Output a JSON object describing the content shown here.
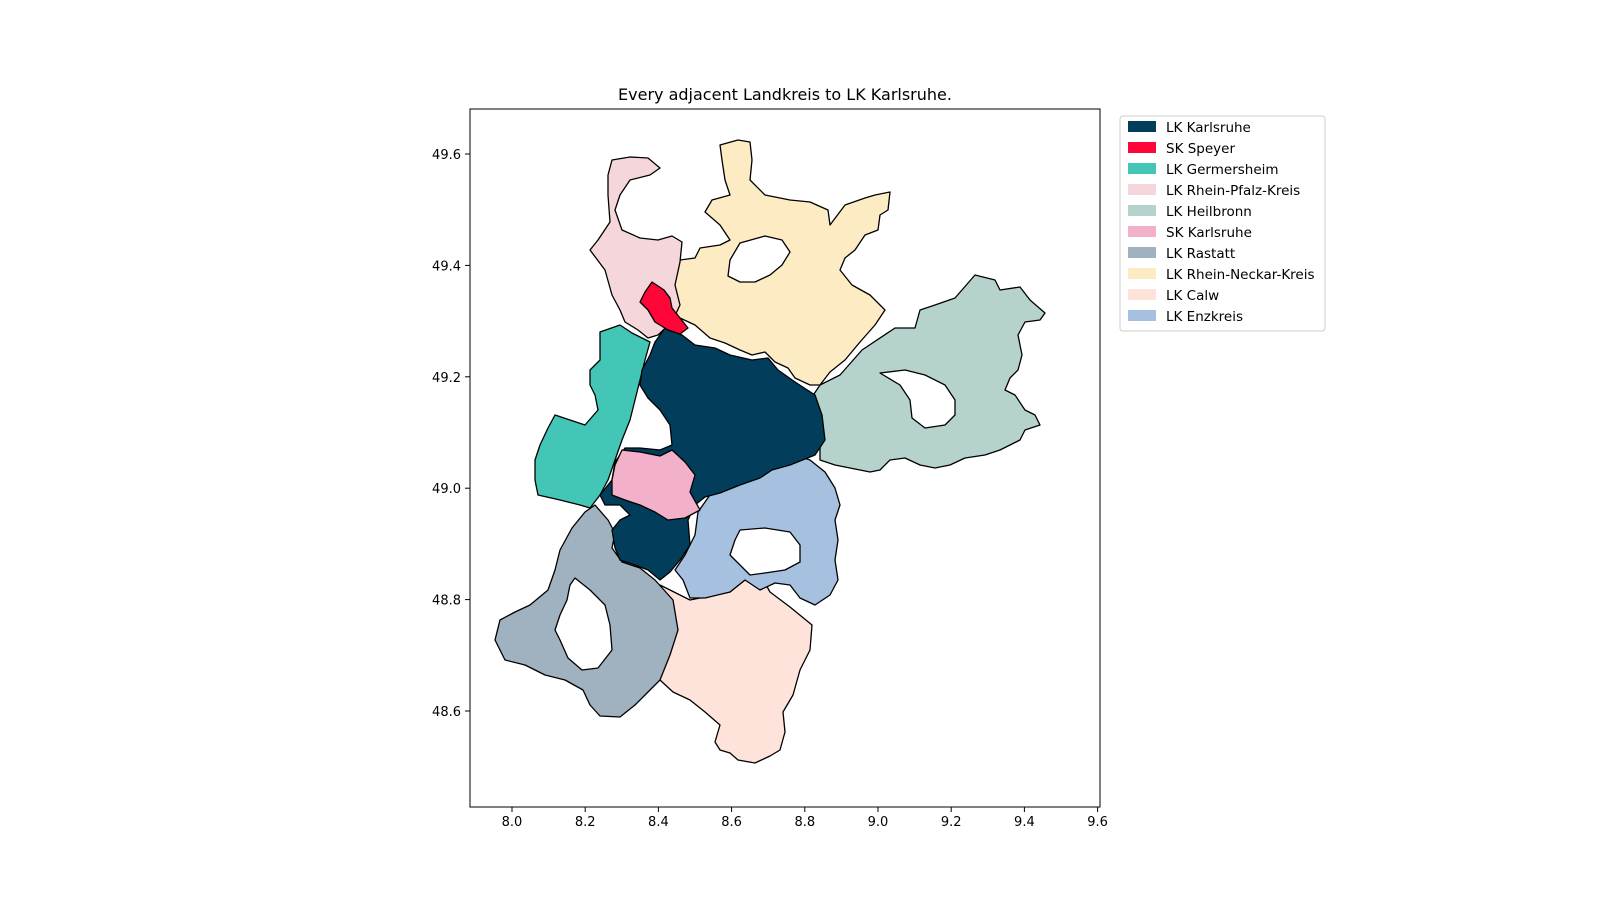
{
  "title": "Every adjacent Landkreis to LK Karlsruhe.",
  "x_ticks": [
    "8.0",
    "8.2",
    "8.4",
    "8.6",
    "8.8",
    "9.0",
    "9.2",
    "9.4",
    "9.6"
  ],
  "y_ticks": [
    "49.6",
    "49.4",
    "49.2",
    "49.0",
    "48.8",
    "48.6"
  ],
  "legend": [
    {
      "label": "LK Karlsruhe",
      "color": "#023e5c"
    },
    {
      "label": "SK Speyer",
      "color": "#fe0637"
    },
    {
      "label": "LK Germersheim",
      "color": "#43c6b6"
    },
    {
      "label": "LK Rhein-Pfalz-Kreis",
      "color": "#f5d6da"
    },
    {
      "label": "LK Heilbronn",
      "color": "#b6d2cd"
    },
    {
      "label": "SK Karlsruhe",
      "color": "#f3b0cb"
    },
    {
      "label": "LK Rastatt",
      "color": "#a0b1bf"
    },
    {
      "label": "LK Rhein-Neckar-Kreis",
      "color": "#fdebc3"
    },
    {
      "label": "LK Calw",
      "color": "#fde3d9"
    },
    {
      "label": "LK Enzkreis",
      "color": "#a6c1df"
    }
  ]
}
